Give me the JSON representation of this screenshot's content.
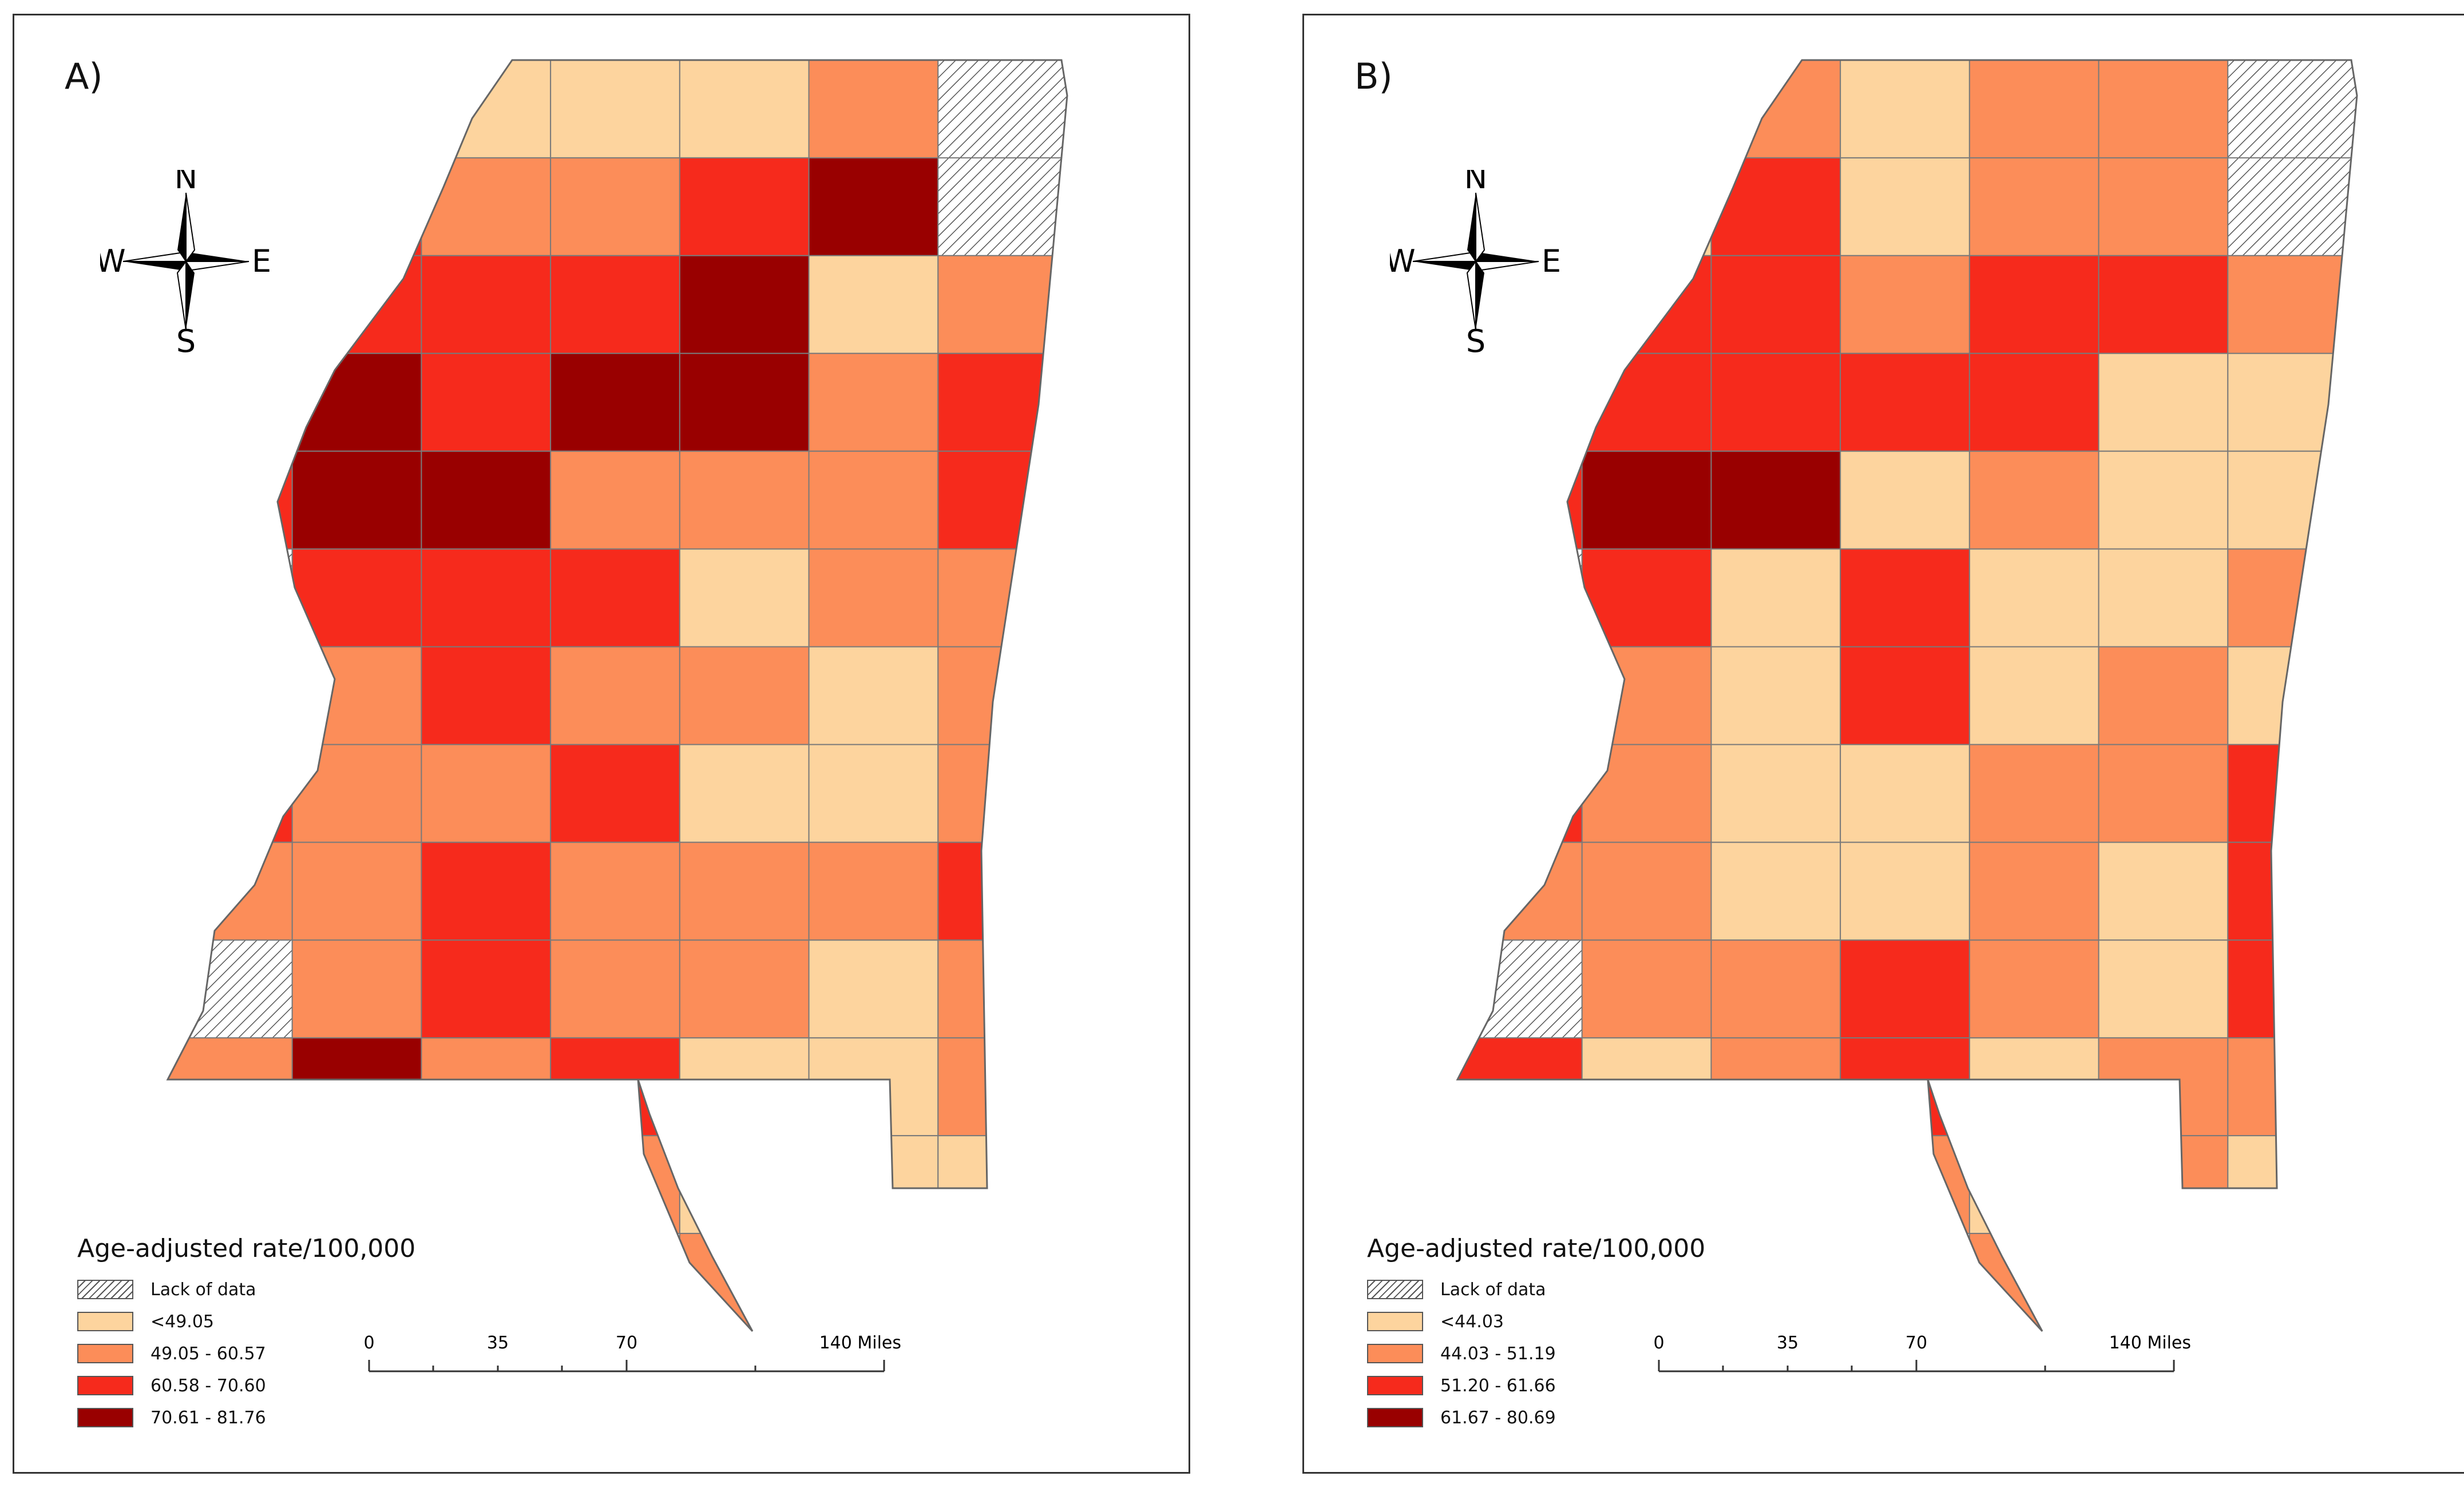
{
  "panels": [
    {
      "label": "A)",
      "compass": {
        "n": "N",
        "s": "S",
        "w": "W",
        "e": "E"
      },
      "legend_title": "Age-adjusted rate/100,000",
      "legend": [
        {
          "label": "Lack of data",
          "type": "hatch",
          "color": "#ffffff"
        },
        {
          "label": "<49.05",
          "type": "fill",
          "color": "#fdd49e"
        },
        {
          "label": "49.05 - 60.57",
          "type": "fill",
          "color": "#fc8d59"
        },
        {
          "label": "60.58 - 70.60",
          "type": "fill",
          "color": "#f62a1c"
        },
        {
          "label": "70.61 - 81.76",
          "type": "fill",
          "color": "#990000"
        }
      ],
      "scale": {
        "ticks": [
          "0",
          "35",
          "70",
          "140 Miles"
        ]
      },
      "counties": [
        0,
        1,
        1,
        1,
        1,
        2,
        0,
        0,
        3,
        2,
        2,
        3,
        4,
        0,
        4,
        3,
        3,
        3,
        4,
        1,
        2,
        4,
        4,
        3,
        4,
        4,
        2,
        3,
        3,
        4,
        4,
        2,
        2,
        2,
        3,
        0,
        3,
        3,
        3,
        1,
        2,
        2,
        3,
        2,
        3,
        2,
        2,
        1,
        2,
        3,
        2,
        2,
        3,
        1,
        1,
        2,
        2,
        2,
        3,
        2,
        2,
        2,
        3,
        0,
        2,
        3,
        2,
        2,
        1,
        2,
        2,
        4,
        2,
        3,
        1,
        1,
        2,
        3,
        2,
        2,
        2,
        1,
        1,
        1,
        9,
        9,
        9,
        9,
        2,
        1,
        2
      ]
    },
    {
      "label": "B)",
      "compass": {
        "n": "N",
        "s": "S",
        "w": "W",
        "e": "E"
      },
      "legend_title": "Age-adjusted rate/100,000",
      "legend": [
        {
          "label": "Lack of data",
          "type": "hatch",
          "color": "#ffffff"
        },
        {
          "label": "<44.03",
          "type": "fill",
          "color": "#fdd49e"
        },
        {
          "label": "44.03 - 51.19",
          "type": "fill",
          "color": "#fc8d59"
        },
        {
          "label": "51.20 - 61.66",
          "type": "fill",
          "color": "#f62a1c"
        },
        {
          "label": "61.67 - 80.69",
          "type": "fill",
          "color": "#990000"
        }
      ],
      "scale": {
        "ticks": [
          "0",
          "35",
          "70",
          "140 Miles"
        ]
      },
      "counties": [
        1,
        1,
        2,
        1,
        2,
        2,
        0,
        3,
        1,
        3,
        1,
        2,
        2,
        0,
        4,
        3,
        3,
        2,
        3,
        3,
        2,
        4,
        3,
        3,
        3,
        3,
        1,
        1,
        3,
        4,
        4,
        1,
        2,
        1,
        1,
        0,
        3,
        1,
        3,
        1,
        1,
        2,
        3,
        2,
        1,
        3,
        1,
        2,
        1,
        3,
        2,
        1,
        1,
        2,
        2,
        3,
        2,
        2,
        1,
        1,
        2,
        1,
        3,
        0,
        2,
        2,
        3,
        2,
        1,
        3,
        3,
        1,
        2,
        3,
        1,
        2,
        2,
        3,
        1,
        2,
        2,
        1,
        2,
        1,
        9,
        9,
        9,
        9,
        2,
        2,
        1
      ]
    }
  ]
}
